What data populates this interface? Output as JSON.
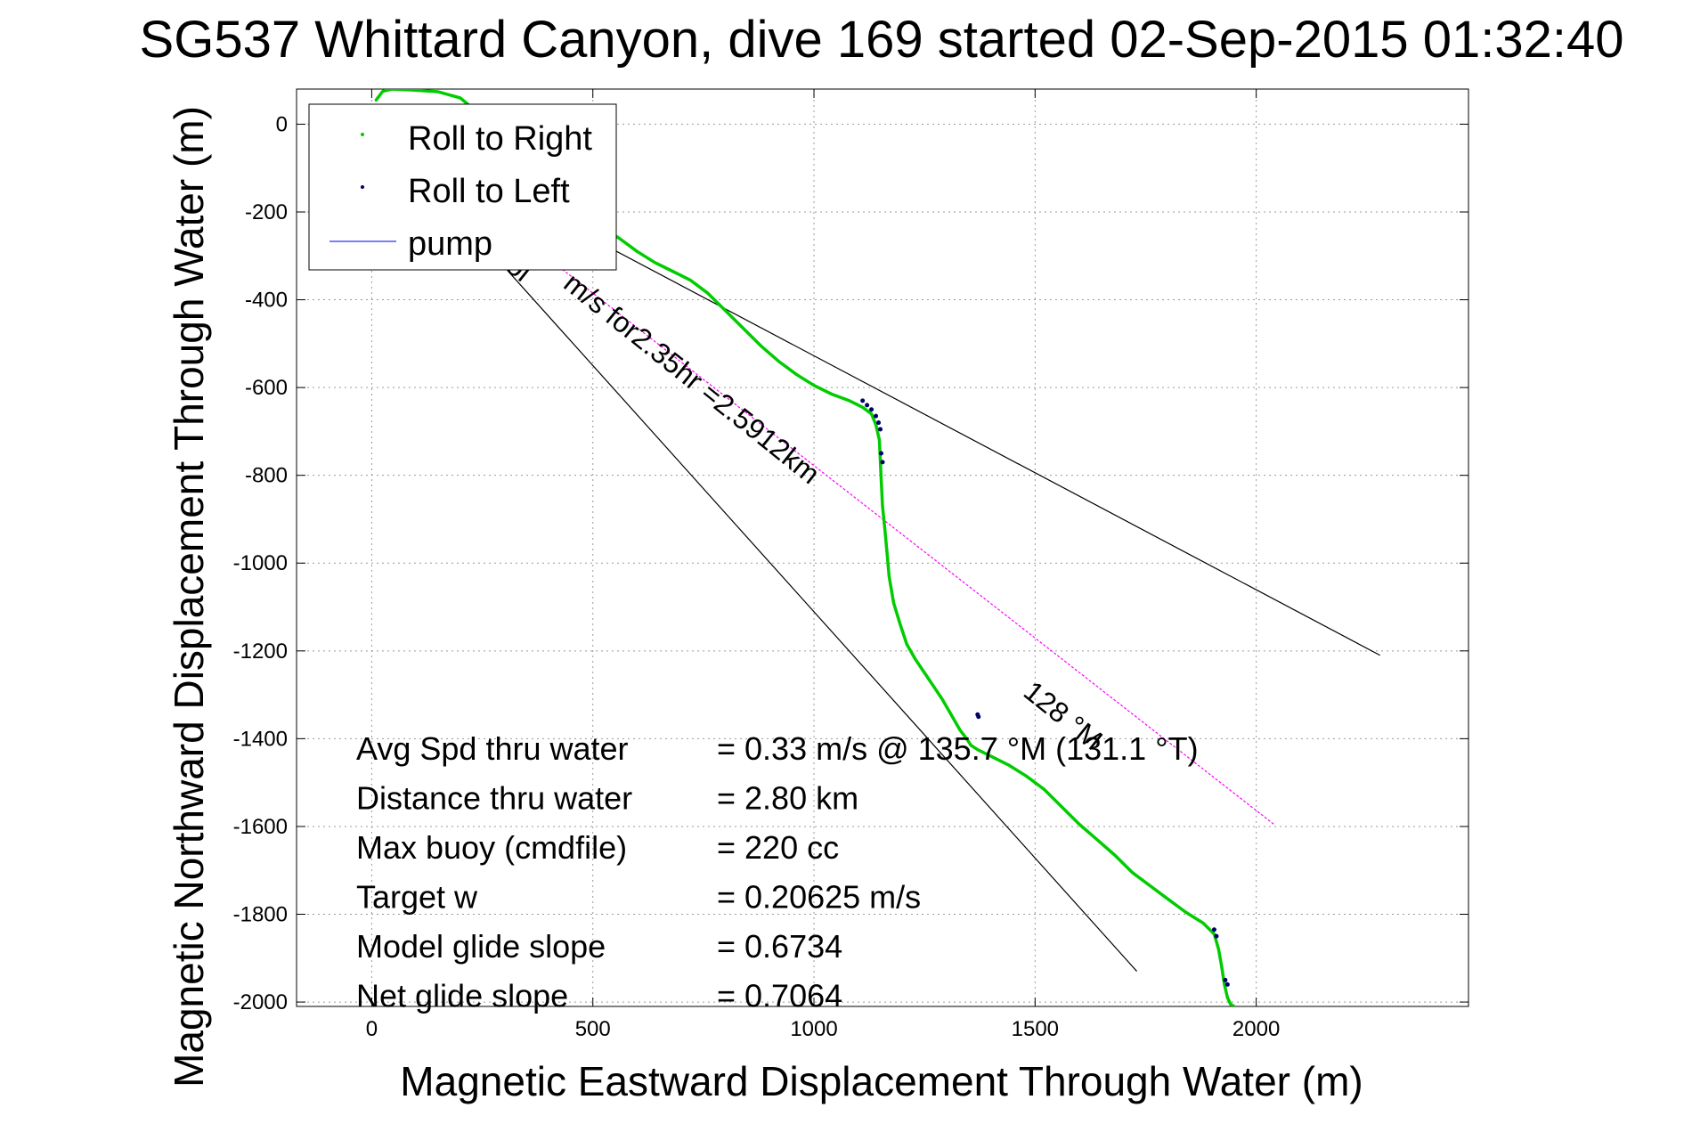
{
  "chart_data": {
    "type": "line",
    "title": "SG537 Whittard Canyon, dive 169 started 02-Sep-2015 01:32:40",
    "xlabel": "Magnetic Eastward Displacement Through Water (m)",
    "ylabel": "Magnetic Northward Displacement Through Water (m)",
    "xlim": [
      -170,
      2480
    ],
    "ylim": [
      -2010,
      80
    ],
    "xticks": [
      0,
      500,
      1000,
      1500,
      2000
    ],
    "yticks": [
      0,
      -200,
      -400,
      -600,
      -800,
      -1000,
      -1200,
      -1400,
      -1600,
      -1800,
      -2000
    ],
    "grid": true,
    "legend_position": "top-left",
    "colors": {
      "roll_right": "#00cc00",
      "roll_left": "#000066",
      "pump": "#5050ff",
      "course_line": "#ff00ff",
      "envelope_line": "#000000"
    },
    "legend": [
      {
        "label": "Roll to Right",
        "marker": "dot",
        "color": "#00cc00"
      },
      {
        "label": "Roll to Left",
        "marker": "dot",
        "color": "#000066"
      },
      {
        "label": "pump",
        "marker": "line",
        "color": "#5050ff"
      }
    ],
    "series": [
      {
        "name": "Roll to Right",
        "style": "line",
        "color": "#00cc00",
        "x": [
          10,
          25,
          45,
          90,
          150,
          200,
          230,
          260,
          290,
          320,
          360,
          400,
          440,
          480,
          520,
          560,
          600,
          640,
          680,
          720,
          760,
          800,
          840,
          880,
          920,
          960,
          1000,
          1040,
          1080,
          1110,
          1130,
          1140,
          1148,
          1150,
          1152,
          1155,
          1160,
          1165,
          1170,
          1180,
          1195,
          1210,
          1230,
          1250,
          1270,
          1290,
          1310,
          1330,
          1345,
          1355,
          1370,
          1400,
          1440,
          1480,
          1520,
          1560,
          1600,
          1640,
          1680,
          1720,
          1760,
          1800,
          1840,
          1880,
          1905,
          1915,
          1922,
          1928,
          1935,
          1942,
          1950
        ],
        "y": [
          55,
          75,
          80,
          78,
          74,
          60,
          35,
          5,
          -25,
          -55,
          -90,
          -130,
          -165,
          -200,
          -235,
          -260,
          -290,
          -315,
          -335,
          -355,
          -385,
          -425,
          -465,
          -505,
          -540,
          -570,
          -595,
          -615,
          -630,
          -645,
          -660,
          -685,
          -720,
          -765,
          -810,
          -870,
          -920,
          -975,
          -1030,
          -1090,
          -1140,
          -1185,
          -1220,
          -1250,
          -1280,
          -1310,
          -1345,
          -1380,
          -1400,
          -1415,
          -1425,
          -1440,
          -1460,
          -1485,
          -1515,
          -1555,
          -1595,
          -1630,
          -1665,
          -1705,
          -1735,
          -1765,
          -1795,
          -1820,
          -1845,
          -1880,
          -1920,
          -1960,
          -1990,
          -2005,
          -2010
        ]
      },
      {
        "name": "Roll to Left",
        "style": "dots",
        "color": "#000066",
        "x": [
          1110,
          1120,
          1130,
          1140,
          1146,
          1150,
          1152,
          1155,
          1370,
          1372,
          1905,
          1910,
          1930,
          1935
        ],
        "y": [
          -630,
          -640,
          -650,
          -665,
          -680,
          -695,
          -750,
          -770,
          -1345,
          -1350,
          -1835,
          -1850,
          -1950,
          -1960
        ]
      },
      {
        "name": "pump",
        "style": "line",
        "color": "#5050ff",
        "x": [],
        "y": []
      }
    ],
    "reference_lines": [
      {
        "name": "course",
        "color": "#ff00ff",
        "style": "dotted",
        "x": [
          10,
          2040
        ],
        "y": [
          0,
          -1595
        ]
      },
      {
        "name": "envelope-upper",
        "color": "#000000",
        "style": "solid",
        "x": [
          10,
          2280
        ],
        "y": [
          0,
          -1210
        ]
      },
      {
        "name": "envelope-lower",
        "color": "#000000",
        "style": "solid",
        "x": [
          10,
          1730
        ],
        "y": [
          0,
          -1930
        ]
      }
    ],
    "annotations": [
      {
        "text": "m/s for2.35hr =2.5912km",
        "x": 430,
        "y": -370,
        "rotation": 38.7
      },
      {
        "text": "128 °M",
        "x": 1470,
        "y": -1300,
        "rotation": 38.7
      },
      {
        "text": "ol",
        "x": 300,
        "y": -330,
        "rotation": 38.7
      }
    ],
    "stats": [
      {
        "label": "Avg Spd thru water",
        "value": "=  0.33 m/s @ 135.7 °M (131.1 °T)"
      },
      {
        "label": "Distance thru water",
        "value": "=  2.80 km"
      },
      {
        "label": "Max buoy (cmdfile)",
        "value": "= 220 cc"
      },
      {
        "label": "Target w",
        "value": "= 0.20625 m/s"
      },
      {
        "label": "Model glide slope",
        "value": "= 0.6734"
      },
      {
        "label": "Net glide slope",
        "value": "= 0.7064"
      }
    ]
  }
}
